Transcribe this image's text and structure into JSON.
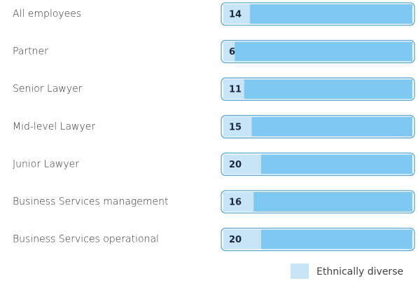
{
  "chart_data": {
    "type": "bar",
    "orientation": "horizontal",
    "categories": [
      "All employees",
      "Partner",
      "Senior Lawyer",
      "Mid-level Lawyer",
      "Junior Lawyer",
      "Business Services management",
      "Business Services operational"
    ],
    "series": [
      {
        "name": "Ethnically diverse",
        "color": "#c8e5f8",
        "values": [
          14,
          6,
          11,
          15,
          20,
          16,
          20
        ]
      }
    ],
    "bar_color": "#7fc8f1",
    "xlim": [
      0,
      100
    ],
    "legend": "bottom-right"
  }
}
